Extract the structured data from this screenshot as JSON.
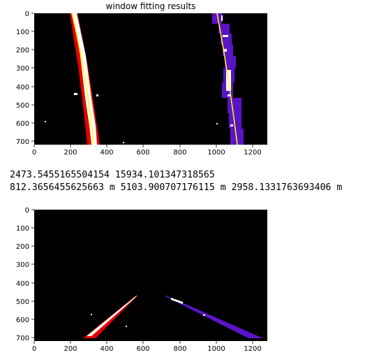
{
  "figure1": {
    "title": "window fitting results",
    "xticks": [
      "0",
      "200",
      "400",
      "600",
      "800",
      "1000",
      "1200"
    ],
    "yticks": [
      "0",
      "100",
      "200",
      "300",
      "400",
      "500",
      "600",
      "700"
    ]
  },
  "output": {
    "line1": "2473.5455165504154 15934.101347318565",
    "line2": "812.3656455625663 m 5103.900707176115 m 2958.1331763693406 m"
  },
  "figure2": {
    "xticks": [
      "0",
      "200",
      "400",
      "600",
      "800",
      "1000",
      "1200"
    ],
    "yticks": [
      "0",
      "100",
      "200",
      "300",
      "400",
      "500",
      "600",
      "700"
    ]
  },
  "colors": {
    "background": "#000000",
    "left_lane": "#e60000",
    "right_lane": "#5a14c8",
    "fit_line": "#ffff00",
    "lane_pixels": "#ffffff"
  }
}
